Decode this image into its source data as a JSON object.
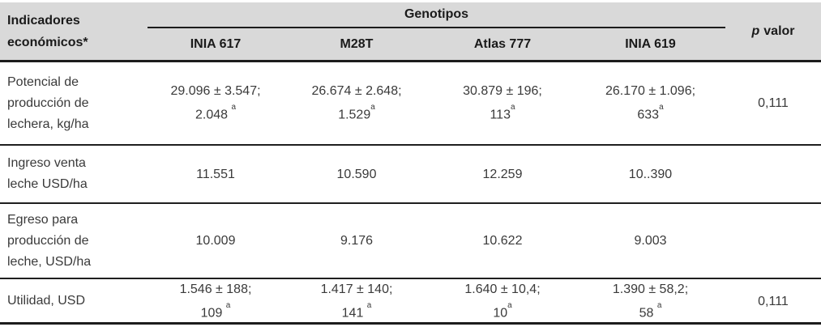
{
  "table": {
    "colors": {
      "header_bg": "#d9d9d9",
      "border": "#1c1c1c",
      "text": "#3a3a3a"
    },
    "header": {
      "indicator_lines": [
        "Indicadores",
        "económicos*"
      ],
      "group_label": "Genotipos",
      "genotypes": [
        "INIA 617",
        "M28T",
        "Atlas 777",
        "INIA 619"
      ],
      "p_italic": "p",
      "p_rest": "valor"
    },
    "rows": [
      {
        "label_lines": [
          "Potencial de",
          "producción de",
          "lechera, kg/ha"
        ],
        "values": [
          {
            "line1": "29.096 ± 3.547;",
            "line2": "2.048 ",
            "sup": "a"
          },
          {
            "line1": "26.674 ± 2.648;",
            "line2": "1.529",
            "sup": "a"
          },
          {
            "line1": "30.879 ± 196;",
            "line2": "113",
            "sup": "a"
          },
          {
            "line1": "26.170 ± 1.096;",
            "line2": "633",
            "sup": "a"
          }
        ],
        "p_value": "0,111"
      },
      {
        "label_lines": [
          "Ingreso venta",
          "leche USD/ha"
        ],
        "values": [
          {
            "line1": "11.551"
          },
          {
            "line1": "10.590"
          },
          {
            "line1": "12.259"
          },
          {
            "line1": "10..390"
          }
        ],
        "p_value": ""
      },
      {
        "label_lines": [
          "Egreso para",
          "producción de",
          "leche, USD/ha"
        ],
        "values": [
          {
            "line1": "10.009"
          },
          {
            "line1": "9.176"
          },
          {
            "line1": "10.622"
          },
          {
            "line1": "9.003"
          }
        ],
        "p_value": ""
      },
      {
        "label_lines": [
          "Utilidad, USD"
        ],
        "values": [
          {
            "line1": "1.546 ± 188;",
            "line2": "109 ",
            "sup": "a"
          },
          {
            "line1": "1.417 ± 140;",
            "line2": "141 ",
            "sup": "a"
          },
          {
            "line1": "1.640 ± 10,4;",
            "line2": "10",
            "sup": "a"
          },
          {
            "line1": "1.390 ± 58,2;",
            "line2": "58 ",
            "sup": "a"
          }
        ],
        "p_value": "0,111"
      }
    ]
  }
}
